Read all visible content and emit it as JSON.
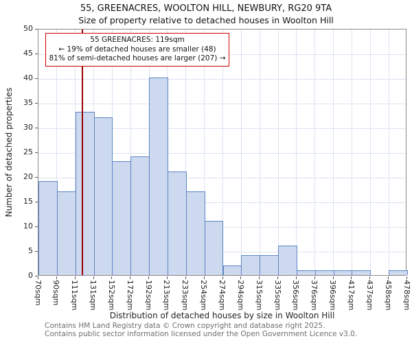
{
  "chart_data": {
    "type": "bar",
    "title": "55, GREENACRES, WOOLTON HILL, NEWBURY, RG20 9TA",
    "subtitle": "Size of property relative to detached houses in Woolton Hill",
    "xlabel": "Distribution of detached houses by size in Woolton Hill",
    "ylabel": "Number of detached properties",
    "ylim": [
      0,
      50
    ],
    "ytick_step": 5,
    "grid": true,
    "categories": [
      "70sqm",
      "90sqm",
      "111sqm",
      "131sqm",
      "152sqm",
      "172sqm",
      "192sqm",
      "213sqm",
      "233sqm",
      "254sqm",
      "274sqm",
      "294sqm",
      "315sqm",
      "335sqm",
      "356sqm",
      "376sqm",
      "396sqm",
      "417sqm",
      "437sqm",
      "458sqm",
      "478sqm"
    ],
    "values": [
      19,
      17,
      33,
      32,
      23,
      24,
      40,
      21,
      17,
      11,
      2,
      4,
      4,
      6,
      1,
      1,
      1,
      1,
      0,
      1
    ],
    "marker": {
      "sqm": 119
    },
    "colors": {
      "bar_fill": "#cdd9ef",
      "bar_border": "#5b84c4",
      "grid": "#dbe2f1",
      "marker": "#990000",
      "annotation_border": "#cc0000"
    }
  },
  "annotation": {
    "line1": "55 GREENACRES: 119sqm",
    "line2": "← 19% of detached houses are smaller (48)",
    "line3": "81% of semi-detached houses are larger (207) →"
  },
  "footer": {
    "line1": "Contains HM Land Registry data © Crown copyright and database right 2025.",
    "line2": "Contains public sector information licensed under the Open Government Licence v3.0."
  }
}
